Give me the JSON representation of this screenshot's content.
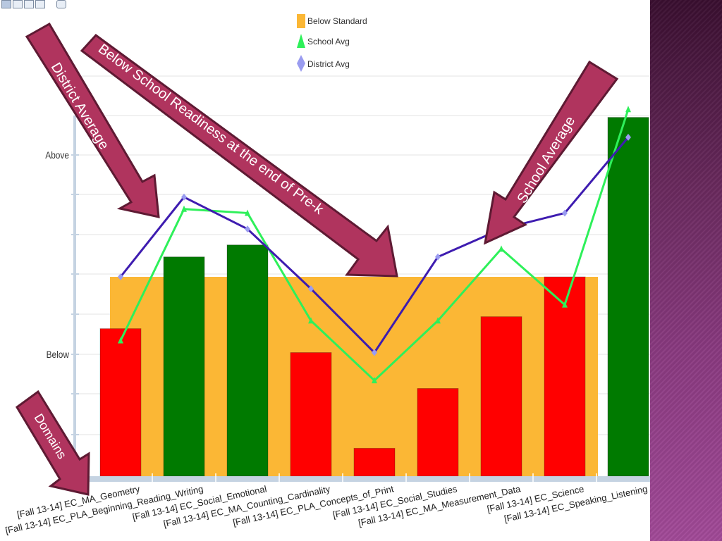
{
  "chart_data": {
    "type": "bar",
    "categories": [
      "[Fall 13-14] EC_MA_Geometry",
      "[Fall 13-14] EC_PLA_Beginning_Reading_Writing",
      "[Fall 13-14] EC_Social_Emotional",
      "[Fall 13-14] EC_MA_Counting_Cardinality",
      "[Fall 13-14] EC_PLA_Concepts_of_Print",
      "[Fall 13-14] EC_Social_Studies",
      "[Fall 13-14] EC_MA_Measurement_Data",
      "[Fall 13-14] EC_Science",
      "[Fall 13-14] EC_Speaking_Listening"
    ],
    "y_tick_labels": [
      "Above",
      "Below"
    ],
    "legend": {
      "placement": "top-center",
      "entries": [
        {
          "name": "Below Standard",
          "color": "#FBB735",
          "marker": "square"
        },
        {
          "name": "School Avg",
          "color": "#2EF05A",
          "marker": "triangle"
        },
        {
          "name": "District Avg",
          "color": "#9A9CF0",
          "marker": "diamond"
        }
      ]
    },
    "below_standard_level": 50,
    "ylim": [
      0,
      100
    ],
    "bars": {
      "values": [
        37,
        55,
        58,
        31,
        7,
        22,
        40,
        50,
        90
      ],
      "colors": [
        "#FF0000",
        "#007A00",
        "#007A00",
        "#FF0000",
        "#FF0000",
        "#FF0000",
        "#FF0000",
        "#FF0000",
        "#007A00"
      ]
    },
    "series": [
      {
        "name": "School Avg",
        "color": "#2EF05A",
        "values": [
          34,
          67,
          66,
          39,
          24,
          39,
          57,
          43,
          92
        ]
      },
      {
        "name": "District Avg",
        "color": "#3E1CB0",
        "values": [
          50,
          70,
          62,
          47,
          31,
          55,
          62,
          66,
          85
        ]
      }
    ],
    "grid": true
  },
  "annotations": {
    "district_average": "District Average",
    "below_readiness": "Below School Readiness at the end of Pre-k",
    "school_average": "School  Average",
    "domains": "Domains"
  },
  "colors": {
    "callout_fill": "#B0345E",
    "callout_stroke": "#5E1A33",
    "callout_text": "#FFFFFF",
    "panel": "#7A3070"
  },
  "icons": [
    "grid-view-icon",
    "table-view-icon",
    "list-view-icon",
    "tree-view-icon",
    "print-icon"
  ]
}
